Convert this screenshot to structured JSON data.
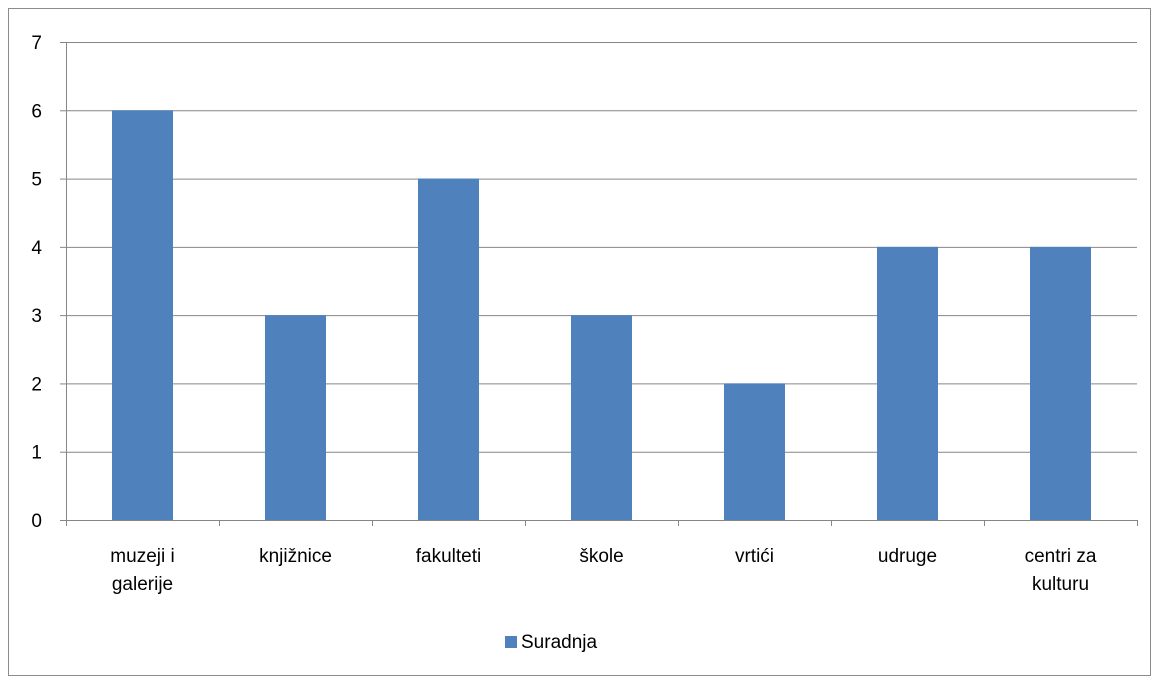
{
  "chart_data": {
    "type": "bar",
    "categories": [
      [
        "muzeji i",
        "galerije"
      ],
      [
        "knjižnice"
      ],
      [
        "fakulteti"
      ],
      [
        "škole"
      ],
      [
        "vrtići"
      ],
      [
        "udruge"
      ],
      [
        "centri za",
        "kulturu"
      ]
    ],
    "series": [
      {
        "name": "Suradnja",
        "values": [
          6,
          3,
          5,
          3,
          2,
          4,
          4
        ],
        "color": "#4F81BD"
      }
    ],
    "ylim": [
      0,
      7
    ],
    "yticks": [
      "0",
      "1",
      "2",
      "3",
      "4",
      "5",
      "6",
      "7"
    ],
    "grid": true,
    "legend_position": "bottom",
    "title": "",
    "xlabel": "",
    "ylabel": ""
  }
}
